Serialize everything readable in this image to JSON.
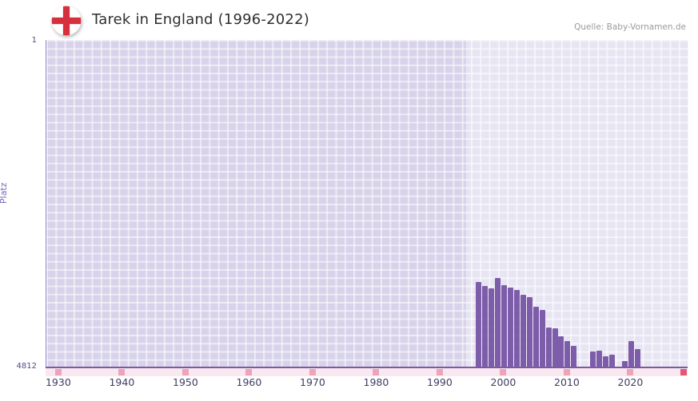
{
  "header": {
    "title": "Tarek in England (1996-2022)",
    "source": "Quelle: Baby-Vornamen.de"
  },
  "axes": {
    "y_label": "Platz",
    "y_top_tick": "1",
    "y_bottom_tick": "4812"
  },
  "chart_data": {
    "type": "bar",
    "title": "Tarek in England (1996-2022)",
    "xlabel": "",
    "ylabel": "Platz",
    "y_axis": {
      "min": 1,
      "max": 4812,
      "inverted": true,
      "tick_labels": [
        "1",
        "4812"
      ]
    },
    "x_domain": [
      1928,
      2029
    ],
    "xticks": [
      1930,
      1940,
      1950,
      1960,
      1970,
      1980,
      1990,
      2000,
      2010,
      2020
    ],
    "years": [
      1996,
      1997,
      1998,
      1999,
      2000,
      2001,
      2002,
      2003,
      2004,
      2005,
      2006,
      2007,
      2008,
      2009,
      2010,
      2011,
      2012,
      2013,
      2014,
      2015,
      2016,
      2017,
      2018,
      2019,
      2020,
      2021,
      2022
    ],
    "ranks": [
      3560,
      3610,
      3650,
      3500,
      3600,
      3640,
      3670,
      3750,
      3780,
      3920,
      3970,
      4220,
      4240,
      4360,
      4420,
      4490,
      null,
      null,
      4580,
      4560,
      4650,
      4620,
      null,
      4720,
      4430,
      4540,
      null
    ],
    "highlight_band_start_year": 1994,
    "legend": "none",
    "grid": true,
    "colors": {
      "bar": "#7d5da9",
      "plot_background": "#d8d3ea",
      "grid_line": "#ffffff",
      "highlight_band": "rgba(255,255,255,0.42)",
      "axis_line": "#7e57a5",
      "tick_strip_background": "#f9e8ef",
      "tick_strip_mark": "#eda4b8",
      "tick_strip_end_mark": "#e25872",
      "flag_cross": "#d6303e"
    }
  }
}
